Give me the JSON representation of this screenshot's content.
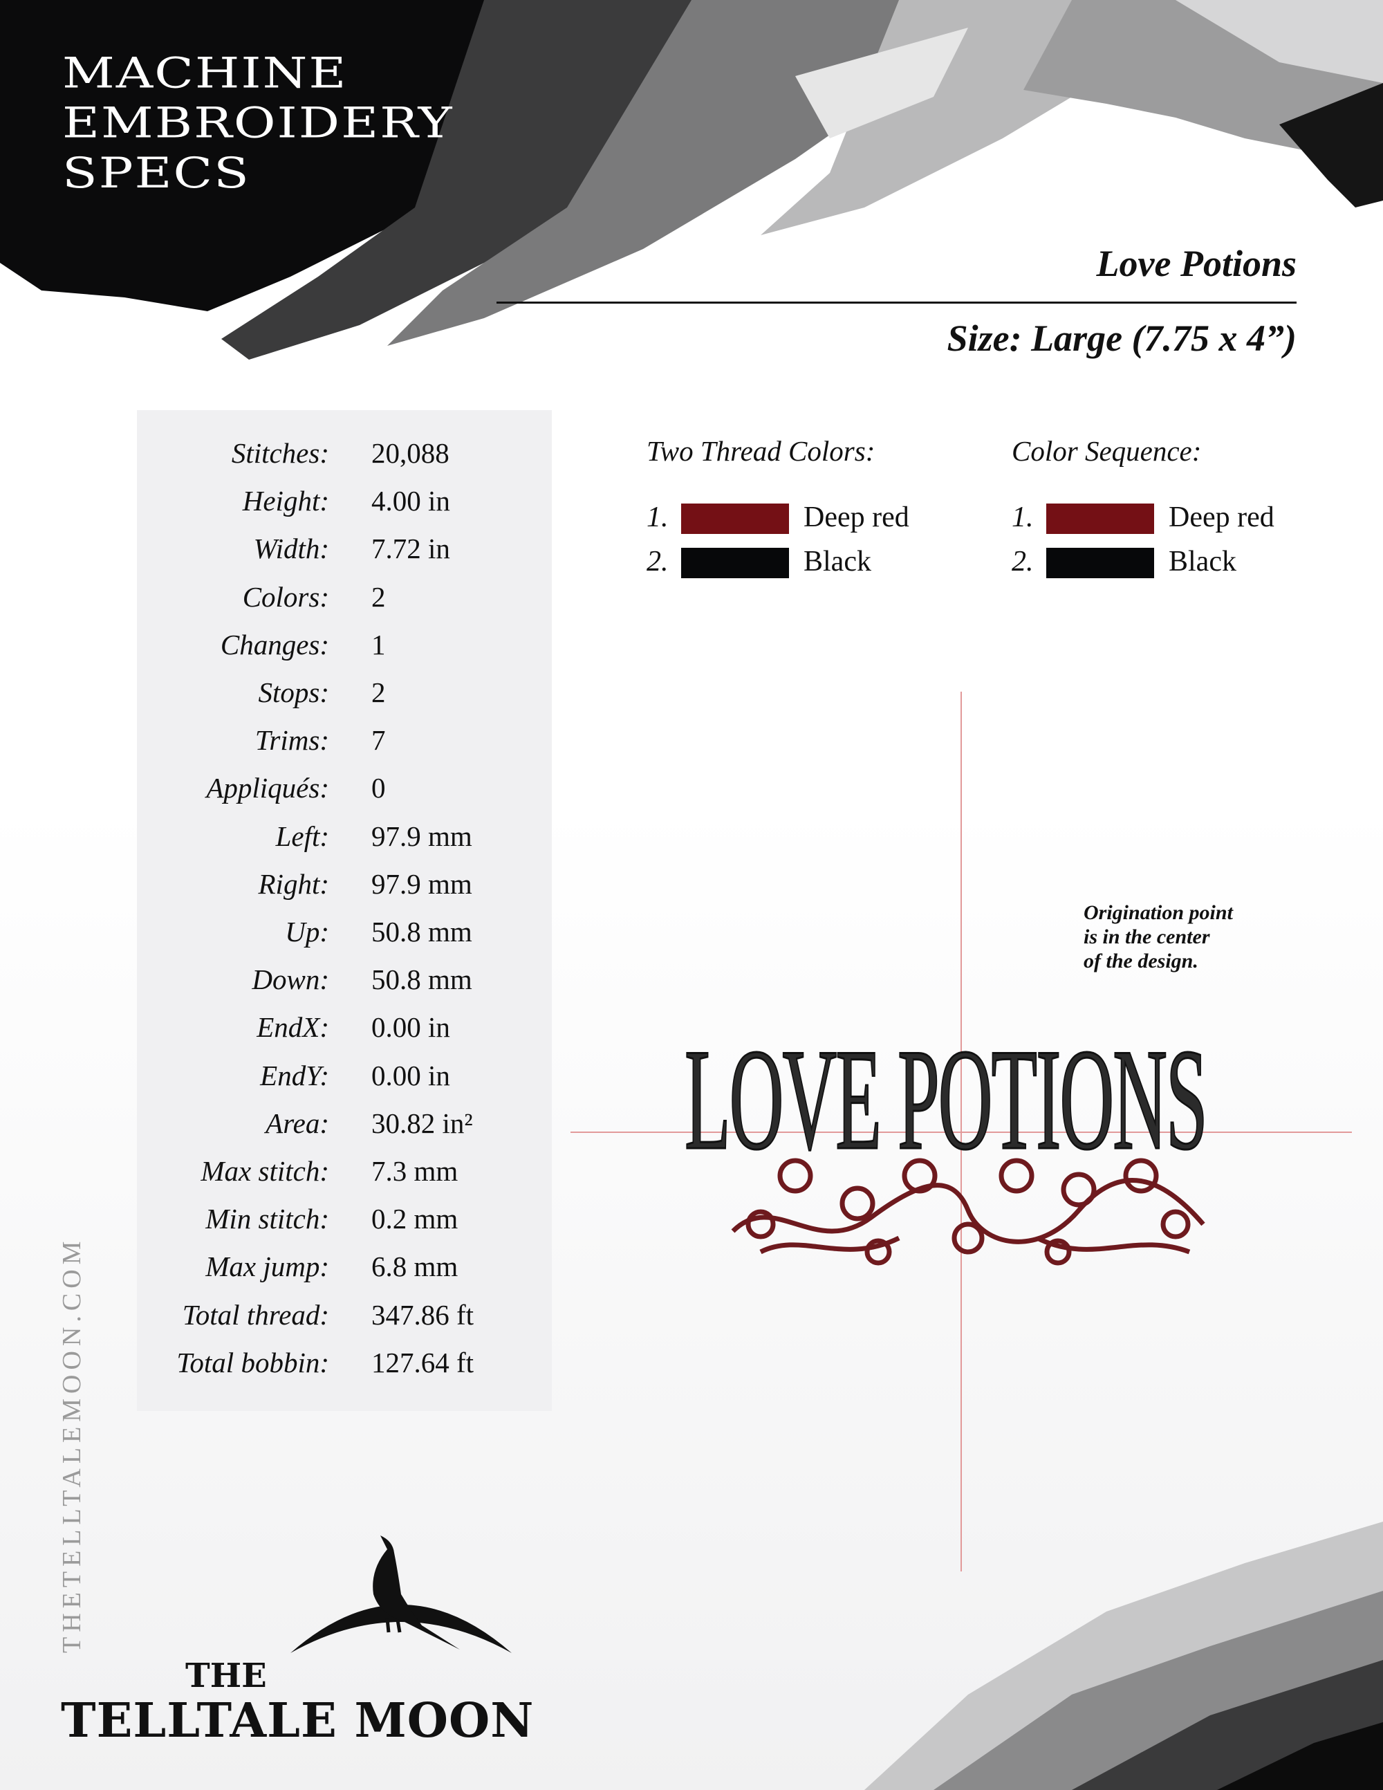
{
  "header": {
    "title_lines": [
      "MACHINE",
      "EMBROIDERY",
      "SPECS"
    ],
    "design_name": "Love Potions",
    "size": "Size: Large (7.75 x 4”)"
  },
  "specs": [
    {
      "label": "Stitches:",
      "value": "20,088"
    },
    {
      "label": "Height:",
      "value": "4.00 in"
    },
    {
      "label": "Width:",
      "value": "7.72 in"
    },
    {
      "label": "Colors:",
      "value": "2"
    },
    {
      "label": "Changes:",
      "value": "1"
    },
    {
      "label": "Stops:",
      "value": "2"
    },
    {
      "label": "Trims:",
      "value": "7"
    },
    {
      "label": "Appliqués:",
      "value": "0"
    },
    {
      "label": "Left:",
      "value": "97.9 mm"
    },
    {
      "label": "Right:",
      "value": "97.9 mm"
    },
    {
      "label": "Up:",
      "value": "50.8 mm"
    },
    {
      "label": "Down:",
      "value": "50.8 mm"
    },
    {
      "label": "EndX:",
      "value": "0.00 in"
    },
    {
      "label": "EndY:",
      "value": "0.00 in"
    },
    {
      "label": "Area:",
      "value": "30.82 in²"
    },
    {
      "label": "Max stitch:",
      "value": "7.3 mm"
    },
    {
      "label": "Min stitch:",
      "value": "0.2 mm"
    },
    {
      "label": "Max jump:",
      "value": "6.8 mm"
    },
    {
      "label": "Total thread:",
      "value": "347.86 ft"
    },
    {
      "label": "Total bobbin:",
      "value": "127.64 ft"
    }
  ],
  "thread_colors": {
    "heading": "Two Thread Colors:",
    "items": [
      {
        "num": "1.",
        "name": "Deep red",
        "color": "#741015"
      },
      {
        "num": "2.",
        "name": "Black",
        "color": "#07080a"
      }
    ]
  },
  "color_sequence": {
    "heading": "Color Sequence:",
    "items": [
      {
        "num": "1.",
        "name": "Deep red",
        "color": "#741015"
      },
      {
        "num": "2.",
        "name": "Black",
        "color": "#07080a"
      }
    ]
  },
  "design_preview": {
    "artwork_text": "LOVE POTIONS",
    "note_lines": [
      "Origination point",
      "is in the center",
      "of the design."
    ]
  },
  "footer": {
    "website": "THETELLTALEMOON.COM",
    "logo_the": "THE",
    "logo_main": "TELLTALE MOON"
  }
}
